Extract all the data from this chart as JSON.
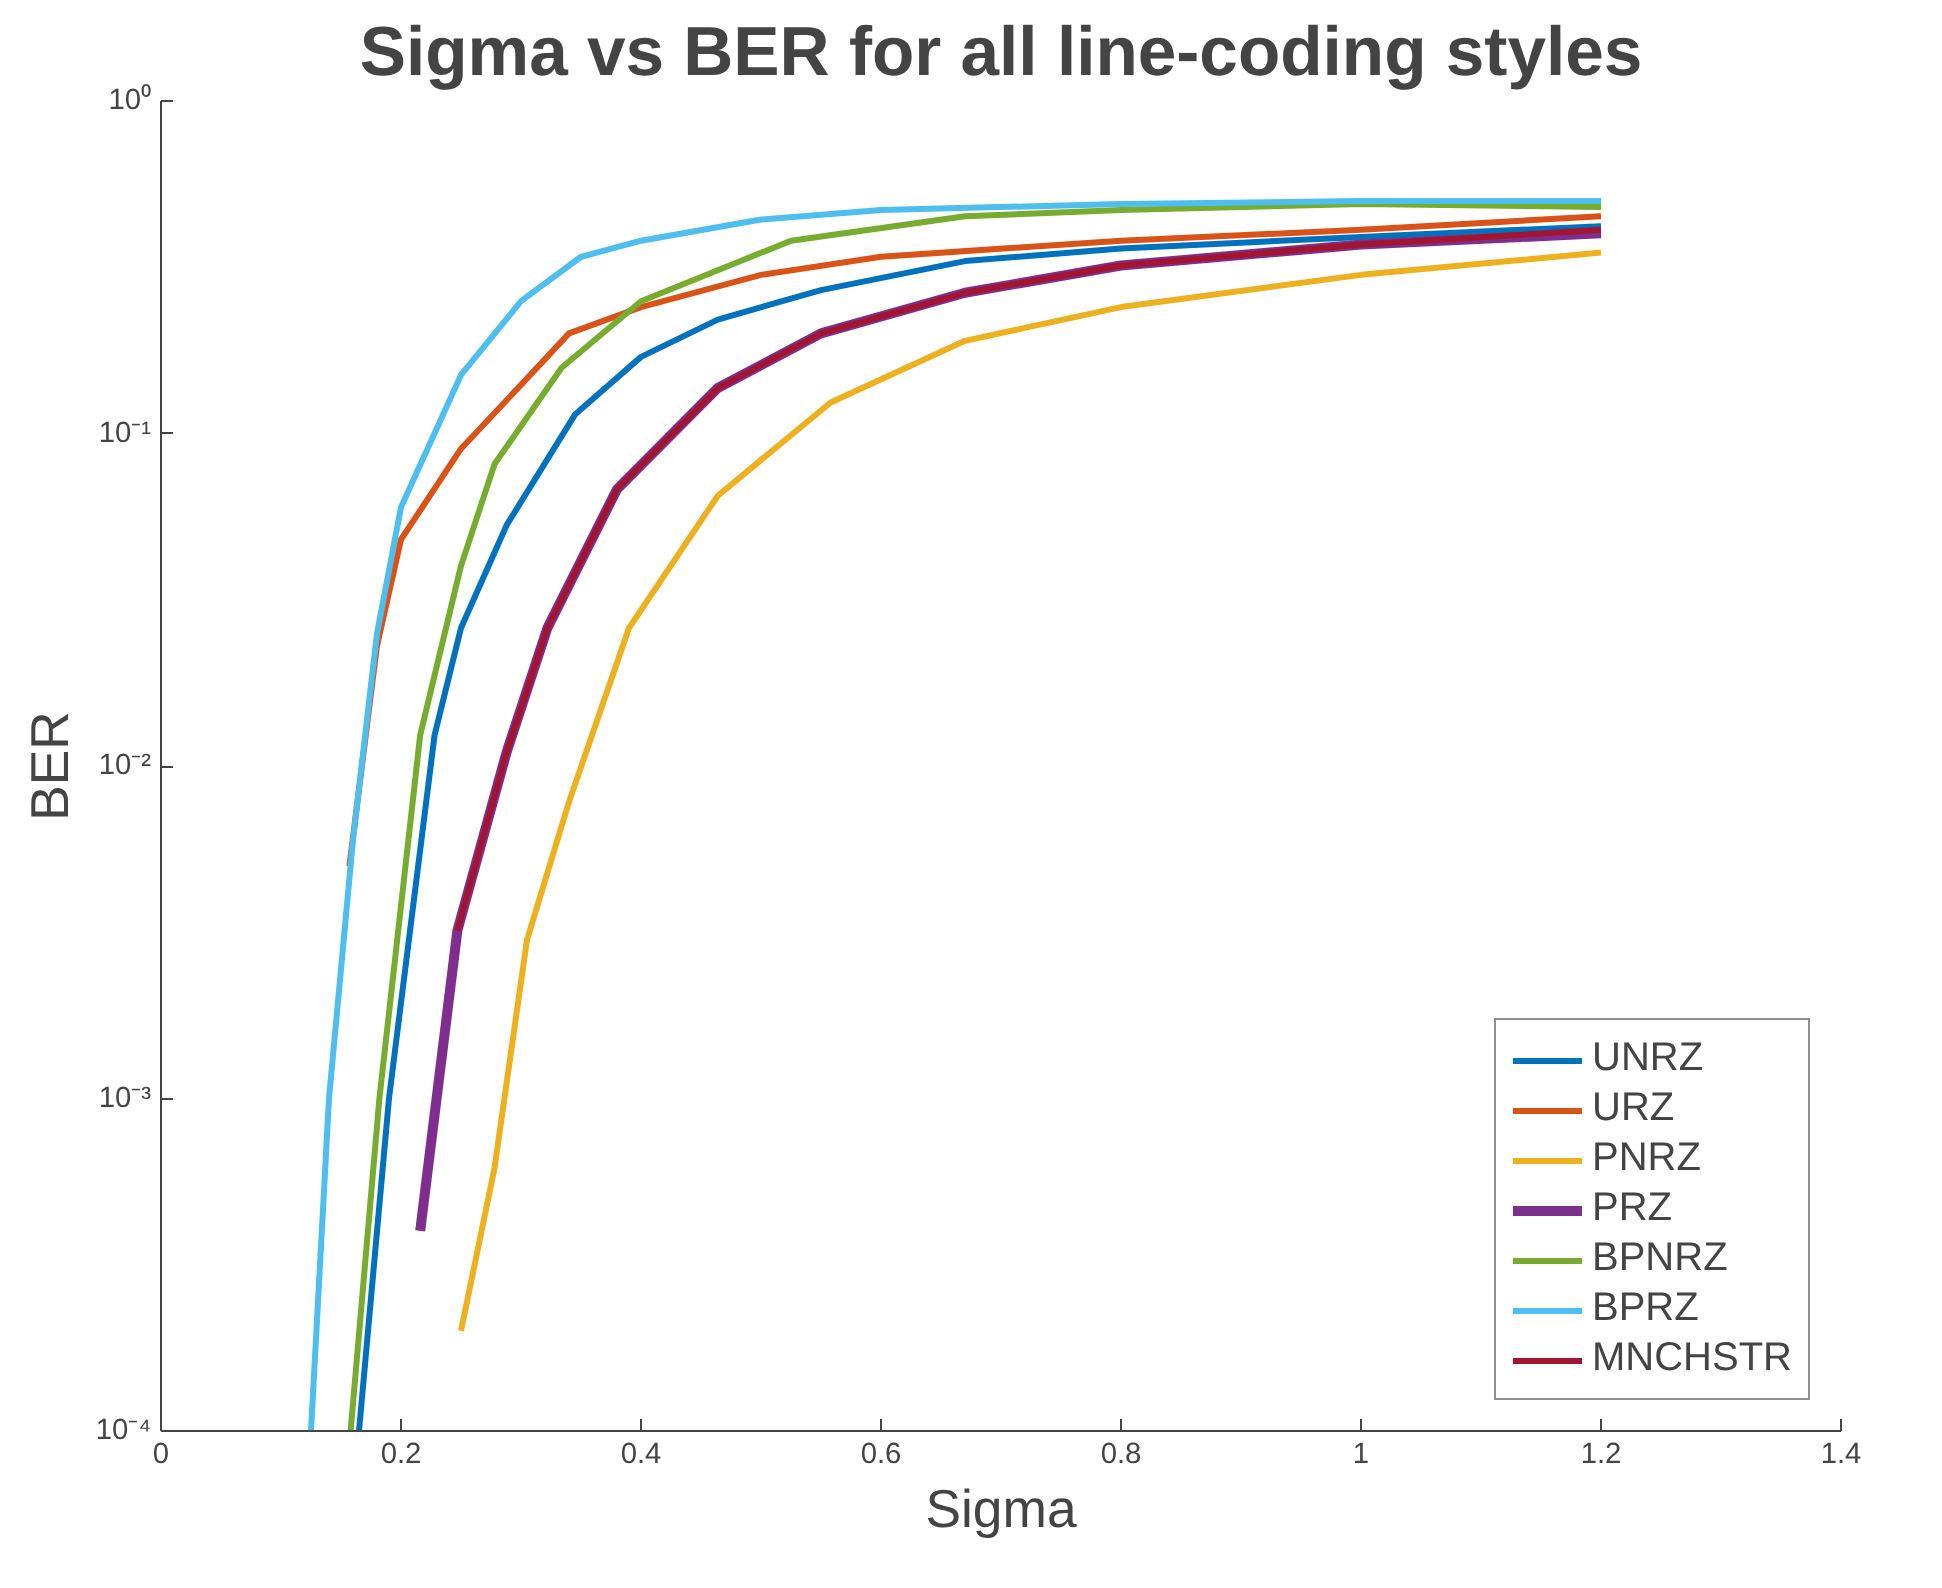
{
  "chart_data": {
    "type": "line",
    "title": "Sigma vs BER for all line-coding styles",
    "xlabel": "Sigma",
    "ylabel": "BER",
    "log": "y",
    "grid": false,
    "legend": "bottom right",
    "marker": "none",
    "line_style": "solid",
    "xlim": [
      0,
      1.4
    ],
    "xticks": [
      0,
      0.2,
      0.4,
      0.6,
      0.8,
      1,
      1.2,
      1.4
    ],
    "ylim": [
      0.0001,
      1
    ],
    "yticks": [
      {
        "value": 0.0001,
        "label": "10⁻⁴"
      },
      {
        "value": 0.001,
        "label": "10⁻³"
      },
      {
        "value": 0.01,
        "label": "10⁻²"
      },
      {
        "value": 0.1,
        "label": "10⁻¹"
      },
      {
        "value": 1,
        "label": "10⁰"
      }
    ],
    "series": [
      {
        "name": "UNRZ",
        "color": "#0072bd",
        "x": [
          0.165,
          0.19,
          0.228,
          0.25,
          0.288,
          0.345,
          0.4,
          0.464,
          0.55,
          0.67,
          0.8,
          1.0,
          1.2
        ],
        "values": [
          0.0001,
          0.001,
          0.0124,
          0.026,
          0.053,
          0.114,
          0.17,
          0.22,
          0.27,
          0.33,
          0.36,
          0.39,
          0.42
        ]
      },
      {
        "name": "URZ",
        "color": "#d95319",
        "x": [
          0.157,
          0.18,
          0.2,
          0.25,
          0.3,
          0.34,
          0.4,
          0.5,
          0.6,
          0.8,
          1.0,
          1.2
        ],
        "values": [
          0.005,
          0.023,
          0.048,
          0.09,
          0.14,
          0.2,
          0.24,
          0.3,
          0.34,
          0.38,
          0.41,
          0.45
        ]
      },
      {
        "name": "PNRZ",
        "color": "#edb120",
        "x": [
          0.25,
          0.278,
          0.305,
          0.34,
          0.39,
          0.464,
          0.558,
          0.67,
          0.8,
          1.0,
          1.2
        ],
        "values": [
          0.0002,
          0.00062,
          0.003,
          0.0078,
          0.026,
          0.065,
          0.124,
          0.19,
          0.24,
          0.3,
          0.35
        ]
      },
      {
        "name": "PRZ",
        "color": "#7e2f8e",
        "x": [
          0.216,
          0.247,
          0.288,
          0.322,
          0.38,
          0.464,
          0.55,
          0.67,
          0.8,
          1.0,
          1.2
        ],
        "values": [
          0.0004,
          0.0032,
          0.011,
          0.026,
          0.068,
          0.137,
          0.2,
          0.265,
          0.32,
          0.37,
          0.4
        ]
      },
      {
        "name": "BPNRZ",
        "color": "#77ac30",
        "x": [
          0.158,
          0.182,
          0.216,
          0.25,
          0.278,
          0.334,
          0.4,
          0.525,
          0.67,
          0.8,
          1.0,
          1.2
        ],
        "values": [
          0.0001,
          0.001,
          0.0124,
          0.04,
          0.081,
          0.158,
          0.25,
          0.38,
          0.45,
          0.47,
          0.49,
          0.48
        ]
      },
      {
        "name": "BPRZ",
        "color": "#4dbeee",
        "x": [
          0.125,
          0.14,
          0.16,
          0.18,
          0.2,
          0.25,
          0.3,
          0.35,
          0.4,
          0.5,
          0.6,
          0.8,
          1.0,
          1.2
        ],
        "values": [
          0.0001,
          0.001,
          0.006,
          0.025,
          0.06,
          0.15,
          0.25,
          0.34,
          0.38,
          0.44,
          0.47,
          0.49,
          0.5,
          0.5
        ]
      },
      {
        "name": "MNCHSTR",
        "color": "#a2142f",
        "x": [
          0.247,
          0.288,
          0.322,
          0.38,
          0.464,
          0.55,
          0.67,
          0.8,
          1.0,
          1.2
        ],
        "values": [
          0.0032,
          0.011,
          0.026,
          0.068,
          0.137,
          0.2,
          0.265,
          0.32,
          0.37,
          0.41
        ]
      }
    ]
  }
}
